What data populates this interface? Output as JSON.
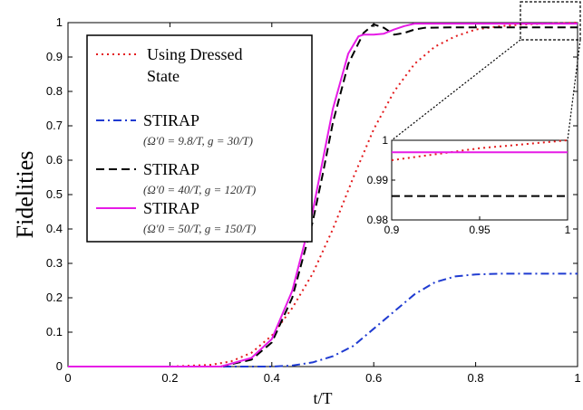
{
  "chart_data": {
    "type": "line",
    "xlabel": "t/T",
    "ylabel": "Fidelities",
    "xlim": [
      0,
      1
    ],
    "ylim": [
      0,
      1
    ],
    "xticks": [
      "0",
      "0.2",
      "0.4",
      "0.6",
      "0.8",
      "1"
    ],
    "yticks": [
      "0",
      "0.1",
      "0.2",
      "0.3",
      "0.4",
      "0.5",
      "0.6",
      "0.7",
      "0.8",
      "0.9",
      "1"
    ],
    "legend_position": "top-left",
    "grid": false,
    "series": [
      {
        "name": "Using Dressed State",
        "color": "#e31a1c",
        "style": "dotted",
        "x": [
          0,
          0.2,
          0.28,
          0.32,
          0.36,
          0.4,
          0.44,
          0.48,
          0.52,
          0.56,
          0.6,
          0.64,
          0.68,
          0.72,
          0.76,
          0.8,
          0.85,
          0.9,
          0.95,
          1
        ],
        "y": [
          0,
          0,
          0.005,
          0.015,
          0.04,
          0.09,
          0.17,
          0.27,
          0.4,
          0.55,
          0.69,
          0.8,
          0.88,
          0.93,
          0.96,
          0.98,
          0.99,
          0.995,
          0.998,
          1
        ]
      },
      {
        "name": "STIRAP",
        "params": "(Ω′0 = 9.8/T, g = 30/T)",
        "color": "#1f3bd1",
        "style": "dashdot",
        "x": [
          0,
          0.4,
          0.44,
          0.48,
          0.52,
          0.56,
          0.6,
          0.64,
          0.68,
          0.72,
          0.76,
          0.8,
          0.85,
          0.9,
          1
        ],
        "y": [
          0,
          0,
          0.003,
          0.012,
          0.03,
          0.06,
          0.11,
          0.16,
          0.21,
          0.245,
          0.262,
          0.268,
          0.27,
          0.27,
          0.27
        ]
      },
      {
        "name": "STIRAP",
        "params": "(Ω′0 = 40/T, g = 120/T)",
        "color": "#000000",
        "style": "dashed",
        "x": [
          0,
          0.3,
          0.36,
          0.4,
          0.44,
          0.48,
          0.5,
          0.52,
          0.55,
          0.58,
          0.6,
          0.62,
          0.64,
          0.66,
          0.68,
          0.7,
          0.75,
          0.8,
          0.9,
          1
        ],
        "y": [
          0,
          0,
          0.02,
          0.07,
          0.2,
          0.42,
          0.56,
          0.71,
          0.88,
          0.97,
          0.995,
          0.985,
          0.965,
          0.97,
          0.98,
          0.985,
          0.986,
          0.986,
          0.986,
          0.986
        ]
      },
      {
        "name": "STIRAP",
        "params": "(Ω′0 = 50/T, g = 150/T)",
        "color": "#e61be6",
        "style": "solid",
        "x": [
          0,
          0.3,
          0.36,
          0.4,
          0.44,
          0.48,
          0.5,
          0.52,
          0.55,
          0.57,
          0.58,
          0.6,
          0.62,
          0.64,
          0.66,
          0.68,
          0.7,
          0.75,
          0.8,
          0.9,
          1
        ],
        "y": [
          0,
          0,
          0.025,
          0.08,
          0.22,
          0.45,
          0.6,
          0.75,
          0.91,
          0.96,
          0.965,
          0.965,
          0.968,
          0.98,
          0.99,
          0.997,
          0.997,
          0.997,
          0.997,
          0.997,
          0.997
        ]
      }
    ],
    "inset": {
      "xlim": [
        0.9,
        1
      ],
      "ylim": [
        0.98,
        1
      ],
      "xticks": [
        "0.9",
        "0.95",
        "1"
      ],
      "yticks": [
        "0.98",
        "0.99",
        "1"
      ]
    }
  }
}
